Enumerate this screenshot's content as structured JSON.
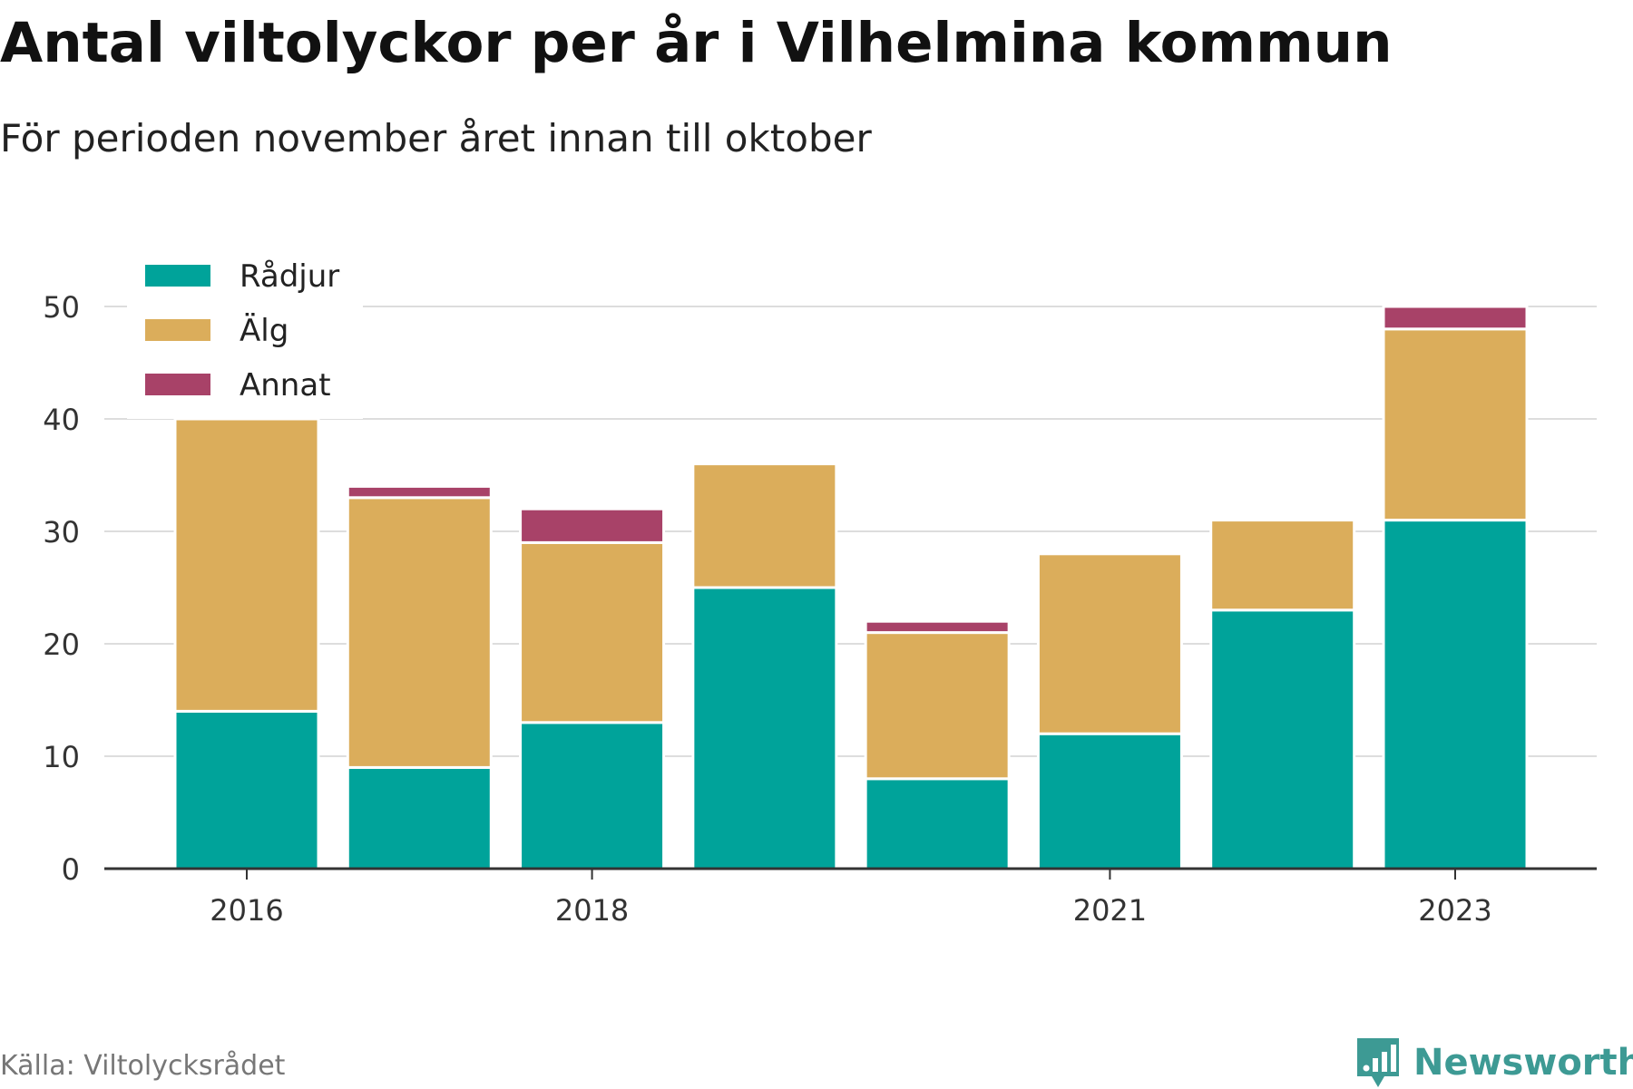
{
  "header": {
    "title": "Antal viltolyckor per år i Vilhelmina kommun",
    "subtitle": "För perioden november året innan till oktober"
  },
  "footer": {
    "source": "Källa: Viltolycksrådet",
    "brand": "Newsworthy",
    "brand_icon": "newsworthy-logo-icon"
  },
  "chart_data": {
    "type": "bar",
    "stacked": true,
    "categories": [
      2016,
      2017,
      2018,
      2019,
      2020,
      2021,
      2022,
      2023
    ],
    "x_tick_labels": [
      "2016",
      "2018",
      "2021",
      "2023"
    ],
    "y_ticks": [
      0,
      10,
      20,
      30,
      40,
      50
    ],
    "ylim": [
      0,
      50
    ],
    "grid": true,
    "legend_position": "top-left",
    "series": [
      {
        "name": "Rådjur",
        "color": "#00a39a",
        "values": [
          14,
          9,
          13,
          25,
          8,
          12,
          23,
          31
        ]
      },
      {
        "name": "Älg",
        "color": "#dbad5b",
        "values": [
          26,
          24,
          16,
          11,
          13,
          16,
          8,
          17
        ]
      },
      {
        "name": "Annat",
        "color": "#a84268",
        "values": [
          0,
          1,
          3,
          0,
          1,
          0,
          0,
          2
        ]
      }
    ]
  }
}
